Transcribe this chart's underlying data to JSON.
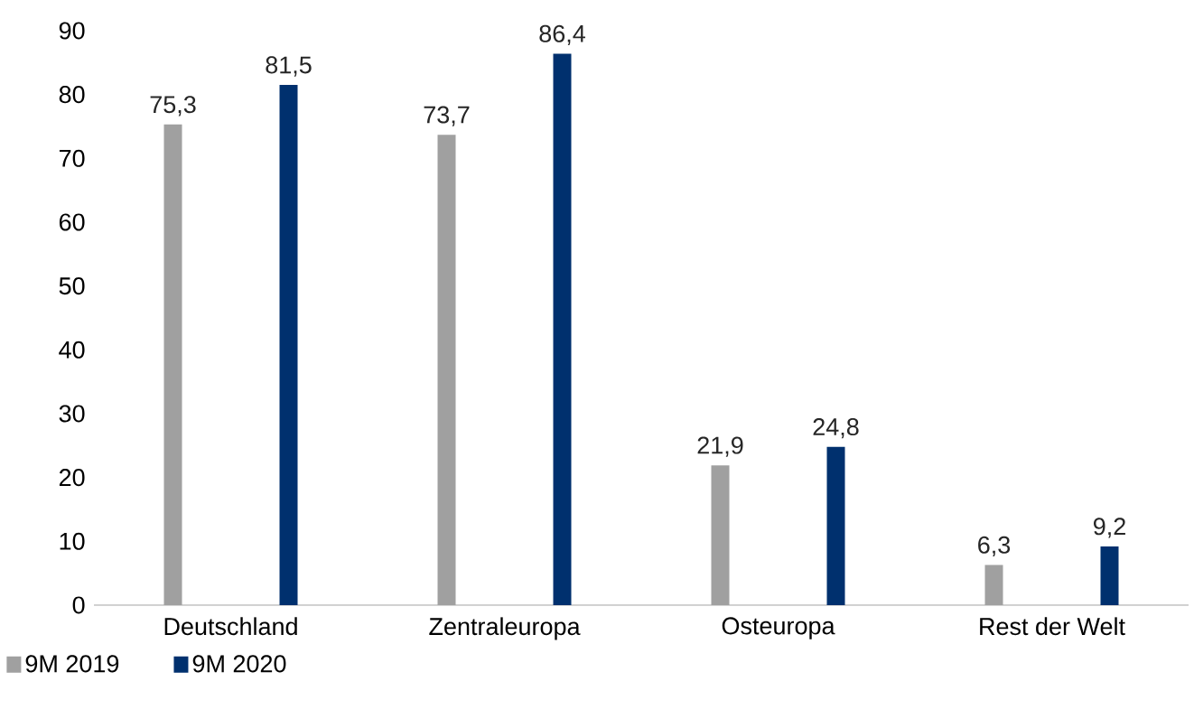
{
  "chart_data": {
    "type": "bar",
    "categories": [
      "Deutschland",
      "Zentraleuropa",
      "Osteuropa",
      "Rest der Welt"
    ],
    "series": [
      {
        "name": "9M 2019",
        "color": "#a0a0a0",
        "values": [
          75.3,
          73.7,
          21.9,
          6.3
        ],
        "value_labels": [
          "75,3",
          "73,7",
          "21,9",
          "6,3"
        ]
      },
      {
        "name": "9M 2020",
        "color": "#00306e",
        "values": [
          81.5,
          86.4,
          24.8,
          9.2
        ],
        "value_labels": [
          "81,5",
          "86,4",
          "24,8",
          "9,2"
        ]
      }
    ],
    "ylim": [
      0,
      90
    ],
    "yticks": [
      0,
      10,
      20,
      30,
      40,
      50,
      60,
      70,
      80,
      90
    ],
    "legend": "bottom left"
  }
}
